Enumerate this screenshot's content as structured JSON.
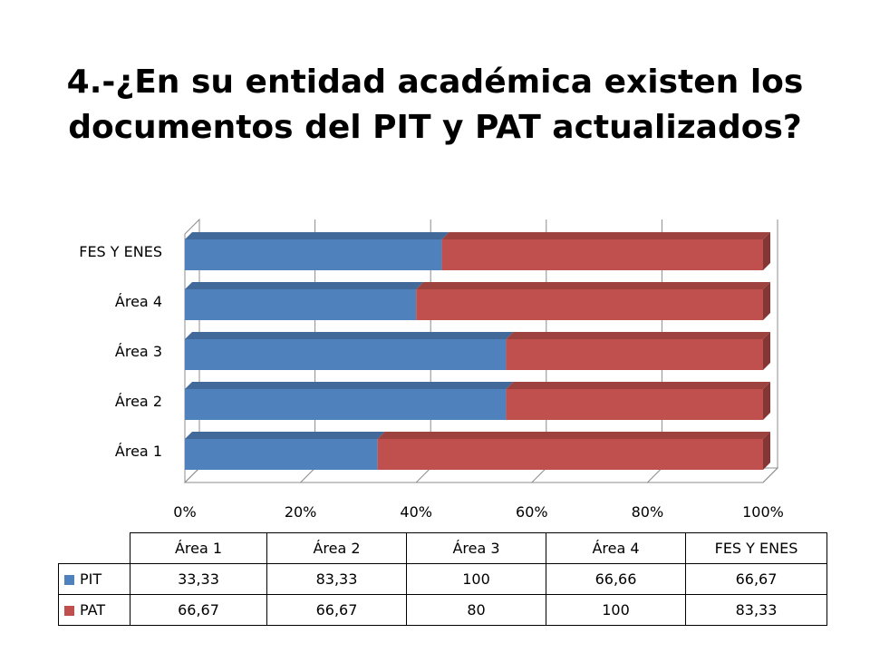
{
  "title": "4.-¿En su entidad académica existen los documentos del PIT y PAT actualizados?",
  "colors": {
    "PIT": "#4F81BD",
    "PAT": "#C0504D"
  },
  "chart_data": {
    "type": "bar",
    "orientation": "horizontal",
    "stacking": "percent",
    "three_d": true,
    "categories": [
      "Área 1",
      "Área 2",
      "Área 3",
      "Área 4",
      "FES Y ENES"
    ],
    "series": [
      {
        "name": "PIT",
        "values": [
          33.33,
          83.33,
          100,
          66.66,
          66.67
        ]
      },
      {
        "name": "PAT",
        "values": [
          66.67,
          66.67,
          80,
          100,
          83.33
        ]
      }
    ],
    "x_ticks": [
      "0%",
      "20%",
      "40%",
      "60%",
      "80%",
      "100%"
    ],
    "xlim": [
      0,
      100
    ],
    "grid": true,
    "legend": "data-table"
  }
}
